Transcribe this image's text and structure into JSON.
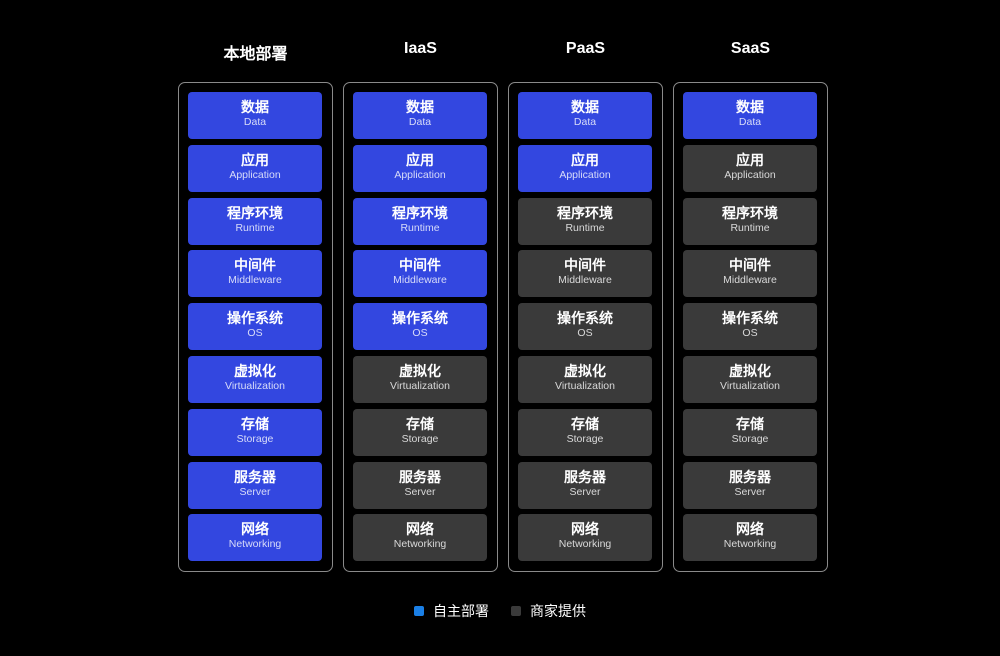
{
  "colors": {
    "self": "#3347e0",
    "vendor": "#3a3a3a",
    "legend_self": "#1a7fe6",
    "legend_vendor": "#3a3a3a"
  },
  "layers": [
    {
      "zh": "数据",
      "en": "Data"
    },
    {
      "zh": "应用",
      "en": "Application"
    },
    {
      "zh": "程序环境",
      "en": "Runtime"
    },
    {
      "zh": "中间件",
      "en": "Middleware"
    },
    {
      "zh": "操作系统",
      "en": "OS"
    },
    {
      "zh": "虚拟化",
      "en": "Virtualization"
    },
    {
      "zh": "存储",
      "en": "Storage"
    },
    {
      "zh": "服务器",
      "en": "Server"
    },
    {
      "zh": "网络",
      "en": "Networking"
    }
  ],
  "columns": [
    {
      "title": "本地部署",
      "self_managed_layers": 9
    },
    {
      "title": "IaaS",
      "self_managed_layers": 5
    },
    {
      "title": "PaaS",
      "self_managed_layers": 2
    },
    {
      "title": "SaaS",
      "self_managed_layers": 1
    }
  ],
  "legend": {
    "self": "自主部署",
    "vendor": "商家提供"
  }
}
